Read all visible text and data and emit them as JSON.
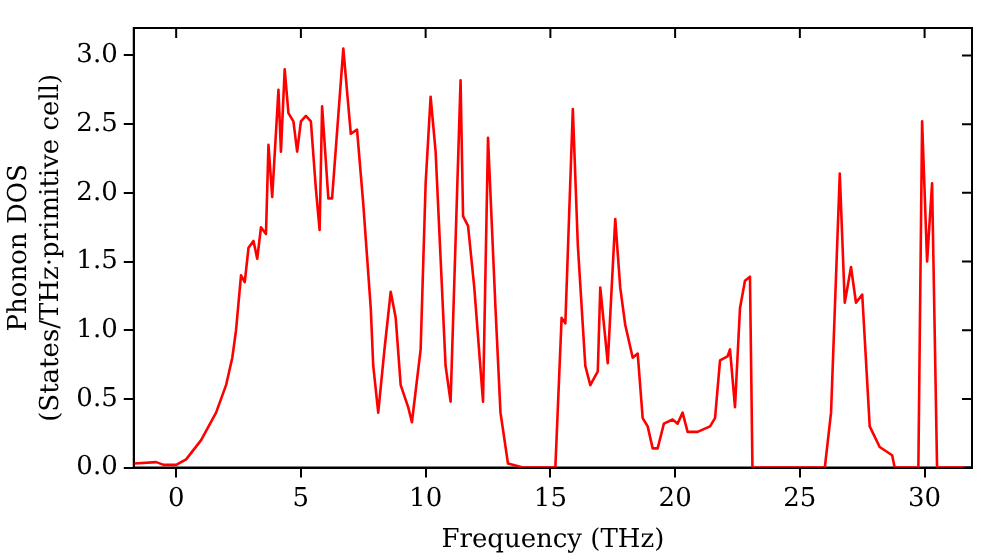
{
  "chart_data": {
    "type": "line",
    "xlabel": "Frequency (THz)",
    "ylabel": "Phonon DOS\n(States/THz·primitive cell)",
    "xlim": [
      -1.7,
      31.9
    ],
    "ylim": [
      0,
      3.2
    ],
    "xticks": [
      0,
      5,
      10,
      15,
      20,
      25,
      30
    ],
    "yticks": [
      {
        "value": 0,
        "label": "0.0"
      },
      {
        "value": 0.5,
        "label": "0.5"
      },
      {
        "value": 1,
        "label": "1.0"
      },
      {
        "value": 1.5,
        "label": "1.5"
      },
      {
        "value": 2,
        "label": "2.0"
      },
      {
        "value": 2.5,
        "label": "2.5"
      },
      {
        "value": 3,
        "label": "3.0"
      }
    ],
    "grid": false,
    "legend": false,
    "marker": "none",
    "line_style": "solid",
    "series": [
      {
        "color": "#ff0000",
        "x": [
          -1.67,
          -0.8,
          -0.5,
          0,
          0.4,
          1.0,
          1.6,
          2.0,
          2.25,
          2.4,
          2.6,
          2.75,
          2.9,
          3.1,
          3.25,
          3.4,
          3.6,
          3.7,
          3.85,
          4.1,
          4.2,
          4.35,
          4.5,
          4.7,
          4.85,
          5.0,
          5.2,
          5.4,
          5.6,
          5.75,
          5.85,
          6.1,
          6.25,
          6.7,
          7.0,
          7.25,
          7.5,
          7.8,
          7.9,
          8.1,
          8.35,
          8.6,
          8.8,
          9.0,
          9.3,
          9.45,
          9.8,
          10.0,
          10.2,
          10.4,
          10.8,
          11.0,
          11.4,
          11.5,
          11.7,
          11.95,
          12.3,
          12.5,
          12.8,
          13.0,
          13.3,
          13.9,
          15.2,
          15.45,
          15.6,
          15.9,
          16.1,
          16.4,
          16.6,
          16.9,
          17.0,
          17.3,
          17.6,
          17.8,
          18.0,
          18.3,
          18.5,
          18.7,
          18.9,
          19.1,
          19.3,
          19.55,
          19.9,
          20.1,
          20.3,
          20.5,
          20.9,
          21.4,
          21.6,
          21.8,
          22.1,
          22.2,
          22.4,
          22.6,
          22.8,
          23.0,
          23.1,
          26.0,
          26.25,
          26.6,
          26.8,
          27.05,
          27.25,
          27.5,
          27.8,
          28.2,
          28.7,
          28.8,
          29.75,
          29.9,
          30.1,
          30.3,
          30.5,
          31.6
        ],
        "values": [
          0.03,
          0.04,
          0.02,
          0.02,
          0.06,
          0.2,
          0.4,
          0.6,
          0.8,
          1.0,
          1.4,
          1.35,
          1.6,
          1.65,
          1.52,
          1.75,
          1.7,
          2.35,
          1.97,
          2.75,
          2.3,
          2.9,
          2.58,
          2.52,
          2.3,
          2.52,
          2.56,
          2.52,
          2.03,
          1.73,
          2.63,
          1.96,
          1.96,
          3.05,
          2.43,
          2.46,
          1.92,
          1.16,
          0.74,
          0.4,
          0.86,
          1.28,
          1.09,
          0.6,
          0.44,
          0.33,
          0.86,
          2.07,
          2.7,
          2.3,
          0.74,
          0.48,
          2.82,
          1.83,
          1.76,
          1.31,
          0.48,
          2.4,
          1.16,
          0.4,
          0.03,
          0,
          0,
          1.09,
          1.05,
          2.61,
          1.62,
          0.74,
          0.6,
          0.7,
          1.31,
          0.76,
          1.81,
          1.31,
          1.04,
          0.8,
          0.83,
          0.36,
          0.3,
          0.14,
          0.14,
          0.32,
          0.35,
          0.32,
          0.4,
          0.26,
          0.26,
          0.3,
          0.36,
          0.78,
          0.81,
          0.86,
          0.44,
          1.16,
          1.36,
          1.39,
          0,
          0,
          0.4,
          2.14,
          1.2,
          1.46,
          1.2,
          1.26,
          0.3,
          0.15,
          0.09,
          0,
          0,
          2.52,
          1.5,
          2.07,
          0,
          0
        ]
      }
    ]
  }
}
